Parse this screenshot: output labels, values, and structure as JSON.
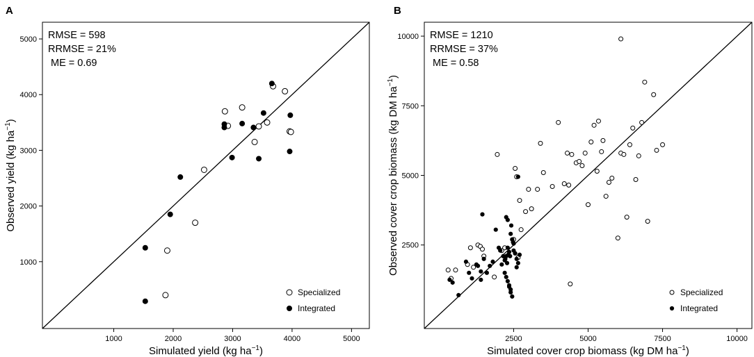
{
  "chart_data": [
    {
      "type": "scatter",
      "panel_label": "A",
      "xlabel": "Simulated yield (kg ha",
      "ylabel": "Observed yield (kg ha",
      "unit_exponent": "−1",
      "xlim": [
        -200,
        5300
      ],
      "ylim": [
        -200,
        5300
      ],
      "xticks": [
        1000,
        2000,
        3000,
        4000,
        5000
      ],
      "yticks": [
        1000,
        2000,
        3000,
        4000,
        5000
      ],
      "stats": [
        "RMSE = 598",
        "RRMSE = 21%",
        "ME = 0.69"
      ],
      "legend": [
        "Specialized",
        "Integrated"
      ],
      "legend_position": "bottom-right",
      "one_to_one_line": true,
      "series": [
        {
          "name": "Specialized",
          "marker": "open-circle",
          "x": [
            1870,
            1900,
            2370,
            2520,
            2870,
            2920,
            3160,
            3370,
            3440,
            3580,
            3680,
            3880,
            3960,
            3980
          ],
          "y": [
            400,
            1200,
            1700,
            2650,
            3700,
            3440,
            3770,
            3150,
            3430,
            3500,
            4150,
            4060,
            3340,
            3330
          ]
        },
        {
          "name": "Integrated",
          "marker": "filled-circle",
          "x": [
            1530,
            1530,
            1950,
            2120,
            2860,
            2860,
            2990,
            3160,
            3350,
            3440,
            3520,
            3660,
            3960,
            3970
          ],
          "y": [
            290,
            1250,
            1850,
            2520,
            3470,
            3410,
            2870,
            3480,
            3410,
            2850,
            3670,
            4200,
            2980,
            3630
          ]
        }
      ]
    },
    {
      "type": "scatter",
      "panel_label": "B",
      "xlabel": "Simulated cover crop biomass (kg DM ha",
      "ylabel": "Observed cover crop biomass (kg DM ha",
      "unit_exponent": "−1",
      "xlim": [
        -500,
        10500
      ],
      "ylim": [
        -500,
        10500
      ],
      "xticks": [
        2500,
        5000,
        7500,
        10000
      ],
      "yticks": [
        2500,
        5000,
        7500,
        10000
      ],
      "stats": [
        "RMSE = 1210",
        "RRMSE = 37%",
        "ME = 0.58"
      ],
      "legend": [
        "Specialized",
        "Integrated"
      ],
      "legend_position": "bottom-right",
      "one_to_one_line": true,
      "series": [
        {
          "name": "Specialized",
          "marker": "open-circle",
          "x": [
            300,
            400,
            550,
            950,
            1050,
            1150,
            1300,
            1380,
            1450,
            1500,
            1850,
            1950,
            2100,
            2200,
            2500,
            2550,
            2600,
            2650,
            2700,
            2750,
            2900,
            3000,
            3100,
            3300,
            3400,
            3500,
            3800,
            4000,
            4200,
            4300,
            4350,
            4450,
            4600,
            4700,
            4800,
            4900,
            5000,
            5100,
            5200,
            5300,
            5350,
            5450,
            5500,
            5600,
            5700,
            5800,
            6000,
            6100,
            6200,
            6300,
            6400,
            6500,
            6600,
            6700,
            6800,
            6900,
            7000,
            7200,
            7300,
            7500,
            4400,
            6100
          ],
          "y": [
            1600,
            1300,
            1600,
            1800,
            2400,
            1700,
            2500,
            2450,
            2350,
            2100,
            1350,
            5750,
            2300,
            2400,
            2700,
            5250,
            4950,
            2050,
            4100,
            3050,
            3700,
            4500,
            3800,
            4500,
            6150,
            5100,
            4600,
            6900,
            4700,
            5800,
            4650,
            5750,
            5450,
            5500,
            5350,
            5800,
            3950,
            6200,
            6800,
            5150,
            6950,
            5850,
            6250,
            4250,
            4750,
            4900,
            2750,
            5800,
            5750,
            3500,
            6100,
            6700,
            4850,
            5700,
            6900,
            8350,
            3350,
            7900,
            5900,
            6100,
            1100,
            9900
          ]
        },
        {
          "name": "Integrated",
          "marker": "filled-circle",
          "x": [
            350,
            450,
            650,
            900,
            1000,
            1100,
            1250,
            1300,
            1400,
            1450,
            1500,
            1600,
            1700,
            1800,
            1900,
            2000,
            2050,
            2100,
            2150,
            2200,
            2220,
            2250,
            2280,
            2300,
            2320,
            2350,
            2380,
            2400,
            2420,
            2450,
            2480,
            2500,
            2550,
            2600,
            2650,
            2700,
            2250,
            2300,
            2350,
            2400,
            2200,
            2250,
            2300,
            2350,
            2400,
            2450,
            2500,
            2550,
            2600,
            2650,
            1400
          ],
          "y": [
            1250,
            1150,
            700,
            1900,
            1500,
            1300,
            1800,
            1750,
            1550,
            3600,
            2000,
            1500,
            1750,
            1900,
            3050,
            2400,
            2300,
            1800,
            2100,
            1950,
            2000,
            2100,
            1850,
            2400,
            2150,
            2250,
            2100,
            2900,
            3200,
            2700,
            2600,
            2550,
            2200,
            1700,
            4950,
            2150,
            3500,
            3400,
            1050,
            900,
            1500,
            1350,
            1200,
            1000,
            800,
            650,
            2300,
            2200,
            2000,
            1850,
            1250
          ]
        }
      ]
    }
  ]
}
